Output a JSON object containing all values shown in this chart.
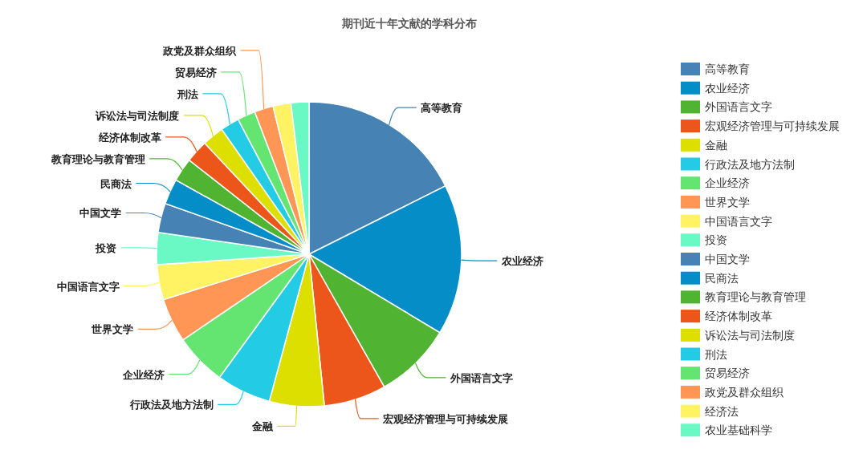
{
  "chart_data": {
    "type": "pie",
    "title": "期刊近十年文献的学科分布",
    "categories": [
      "高等教育",
      "农业经济",
      "外国语言文字",
      "宏观经济管理与可持续发展",
      "金融",
      "行政法及地方法制",
      "企业经济",
      "世界文学",
      "中国语言文字",
      "投资",
      "中国文学",
      "民商法",
      "教育理论与教育管理",
      "经济体制改革",
      "诉讼法与司法制度",
      "刑法",
      "贸易经济",
      "政党及群众组织",
      "经济法",
      "农业基础科学"
    ],
    "values": [
      17.6,
      16.0,
      8.2,
      6.6,
      5.8,
      5.8,
      5.5,
      4.7,
      3.7,
      3.4,
      3.1,
      2.7,
      2.5,
      2.4,
      2.3,
      2.0,
      1.9,
      2.0,
      1.9,
      1.9
    ],
    "colors": [
      "#4682b4",
      "#058dc7",
      "#50b432",
      "#ed561b",
      "#dddf00",
      "#24cbe5",
      "#64e572",
      "#ff9655",
      "#fff263",
      "#6af9c4",
      "#4682b4",
      "#058dc7",
      "#50b432",
      "#ed561b",
      "#dddf00",
      "#24cbe5",
      "#64e572",
      "#ff9655",
      "#fff263",
      "#6af9c4"
    ],
    "legend": "right"
  }
}
